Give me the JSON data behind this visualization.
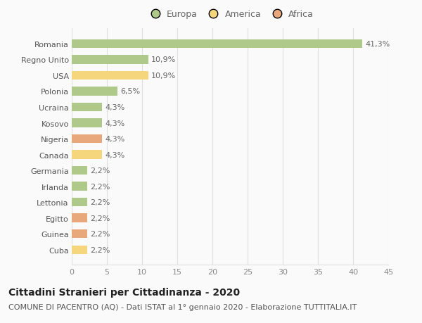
{
  "categories": [
    "Romania",
    "Regno Unito",
    "USA",
    "Polonia",
    "Ucraina",
    "Kosovo",
    "Nigeria",
    "Canada",
    "Germania",
    "Irlanda",
    "Lettonia",
    "Egitto",
    "Guinea",
    "Cuba"
  ],
  "values": [
    41.3,
    10.9,
    10.9,
    6.5,
    4.3,
    4.3,
    4.3,
    4.3,
    2.2,
    2.2,
    2.2,
    2.2,
    2.2,
    2.2
  ],
  "labels": [
    "41,3%",
    "10,9%",
    "10,9%",
    "6,5%",
    "4,3%",
    "4,3%",
    "4,3%",
    "4,3%",
    "2,2%",
    "2,2%",
    "2,2%",
    "2,2%",
    "2,2%",
    "2,2%"
  ],
  "continents": [
    "Europa",
    "Europa",
    "America",
    "Europa",
    "Europa",
    "Europa",
    "Africa",
    "America",
    "Europa",
    "Europa",
    "Europa",
    "Africa",
    "Africa",
    "America"
  ],
  "colors": {
    "Europa": "#aec98a",
    "America": "#f5d67d",
    "Africa": "#e8a87c"
  },
  "legend_labels": [
    "Europa",
    "America",
    "Africa"
  ],
  "legend_colors": [
    "#aec98a",
    "#f5d67d",
    "#e8a87c"
  ],
  "title1": "Cittadini Stranieri per Cittadinanza - 2020",
  "title2": "COMUNE DI PACENTRO (AQ) - Dati ISTAT al 1° gennaio 2020 - Elaborazione TUTTITALIA.IT",
  "xlim": [
    0,
    45
  ],
  "xticks": [
    0,
    5,
    10,
    15,
    20,
    25,
    30,
    35,
    40,
    45
  ],
  "background_color": "#fafafa",
  "grid_color": "#e0e0e0",
  "bar_height": 0.55,
  "label_fontsize": 8,
  "tick_fontsize": 8,
  "ylabel_fontsize": 8,
  "title1_fontsize": 10,
  "title2_fontsize": 8
}
